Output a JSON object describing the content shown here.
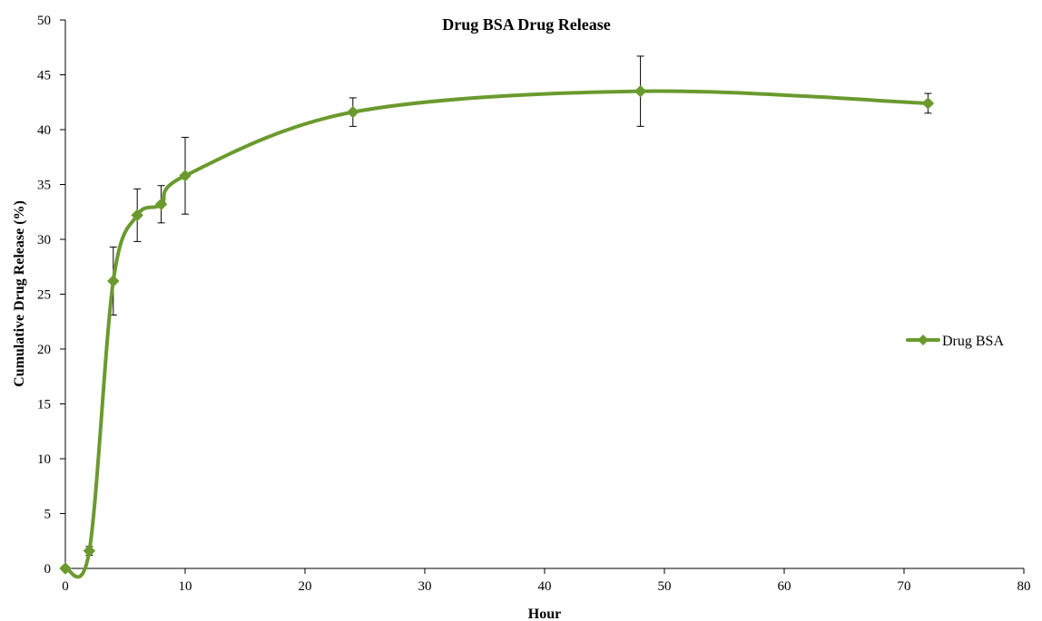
{
  "chart_data": {
    "type": "line",
    "title": "Drug BSA Drug Release",
    "xlabel": "Hour",
    "ylabel": "Cumulative Drug Release (%)",
    "xlim": [
      0,
      80
    ],
    "ylim": [
      0,
      50
    ],
    "xticks": [
      0,
      10,
      20,
      30,
      40,
      50,
      60,
      70,
      80
    ],
    "yticks": [
      0,
      5,
      10,
      15,
      20,
      25,
      30,
      35,
      40,
      45,
      50
    ],
    "grid": false,
    "legend_position": "right",
    "series": [
      {
        "name": "Drug BSA",
        "color": "#6a9a2e",
        "x": [
          0,
          2,
          4,
          6,
          8,
          10,
          24,
          48,
          72
        ],
        "y": [
          0,
          1.6,
          26.2,
          32.2,
          33.2,
          35.8,
          41.6,
          43.5,
          42.4
        ],
        "error": [
          0,
          0.4,
          3.1,
          2.4,
          1.7,
          3.5,
          1.3,
          3.2,
          0.9
        ]
      }
    ]
  }
}
